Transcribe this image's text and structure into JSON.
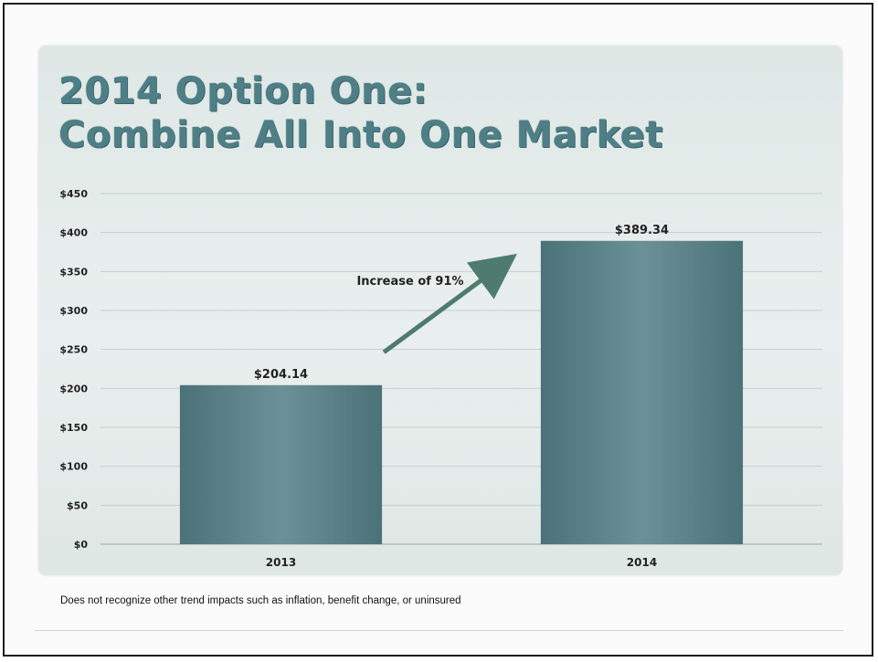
{
  "slide": {
    "title_line1": "2014 Option One:",
    "title_line2": "Combine All Into One Market"
  },
  "chart_data": {
    "type": "bar",
    "title": "2014 Option One: Combine All Into One Market",
    "categories": [
      "2013",
      "2014"
    ],
    "values": [
      204.14,
      389.34
    ],
    "data_labels": [
      "$204.14",
      "$389.34"
    ],
    "xlabel": "",
    "ylabel": "",
    "ylim": [
      0,
      450
    ],
    "y_ticks": [
      0,
      50,
      100,
      150,
      200,
      250,
      300,
      350,
      400,
      450
    ],
    "y_tick_labels": [
      "$0",
      "$50",
      "$100",
      "$150",
      "$200",
      "$250",
      "$300",
      "$350",
      "$400",
      "$450"
    ],
    "grid": true,
    "legend": "none",
    "bar_color": "#5a8188",
    "annotation": {
      "text": "Increase of 91%",
      "type": "arrow"
    }
  },
  "footnote": "Does not recognize other trend impacts such as inflation, benefit change, or uninsured",
  "colors": {
    "title": "#4f7f86",
    "bar": "#5a8188",
    "arrow": "#4f7b6f"
  }
}
